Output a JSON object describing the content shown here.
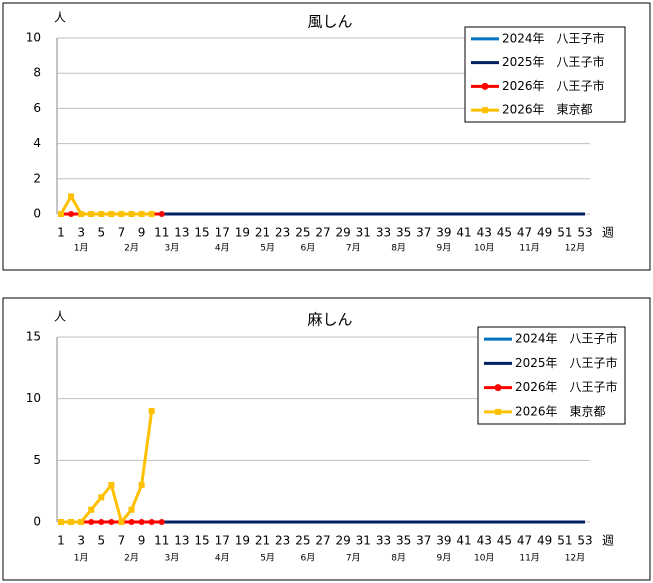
{
  "chart_data": [
    {
      "type": "line",
      "title": "風しん",
      "y_unit": "人",
      "x_unit": "週",
      "x": [
        1,
        2,
        3,
        4,
        5,
        6,
        7,
        8,
        9,
        10,
        11,
        12,
        13,
        14,
        15,
        16,
        17,
        18,
        19,
        20,
        21,
        22,
        23,
        24,
        25,
        26,
        27,
        28,
        29,
        30,
        31,
        32,
        33,
        34,
        35,
        36,
        37,
        38,
        39,
        40,
        41,
        42,
        43,
        44,
        45,
        46,
        47,
        48,
        49,
        50,
        51,
        52,
        53
      ],
      "xlim": [
        1,
        53
      ],
      "xticks": [
        1,
        3,
        5,
        7,
        9,
        11,
        13,
        15,
        17,
        19,
        21,
        23,
        25,
        27,
        29,
        31,
        33,
        35,
        37,
        39,
        41,
        43,
        45,
        47,
        49,
        51,
        53
      ],
      "month_labels": [
        {
          "value": 3,
          "label": "1月"
        },
        {
          "value": 8,
          "label": "2月"
        },
        {
          "value": 12,
          "label": "3月"
        },
        {
          "value": 17,
          "label": "4月"
        },
        {
          "value": 21.5,
          "label": "5月"
        },
        {
          "value": 25.5,
          "label": "6月"
        },
        {
          "value": 30,
          "label": "7月"
        },
        {
          "value": 34.5,
          "label": "8月"
        },
        {
          "value": 39,
          "label": "9月"
        },
        {
          "value": 43,
          "label": "10月"
        },
        {
          "value": 47.5,
          "label": "11月"
        },
        {
          "value": 52,
          "label": "12月"
        }
      ],
      "ylim": [
        0,
        10
      ],
      "yticks": [
        0,
        2,
        4,
        6,
        8,
        10
      ],
      "grid": true,
      "legend": "top-right",
      "series": [
        {
          "name": "2024年　八王子市",
          "color": "#0070c0",
          "values": [
            0,
            0,
            0,
            0,
            0,
            0,
            0,
            0,
            0,
            0,
            0,
            0,
            0,
            0,
            0,
            0,
            0,
            0,
            0,
            0,
            0,
            0,
            0,
            0,
            0,
            0,
            0,
            0,
            0,
            0,
            0,
            0,
            0,
            0,
            0,
            0,
            0,
            0,
            0,
            0,
            0,
            0,
            0,
            0,
            0,
            0,
            0,
            0,
            0,
            0,
            0,
            0,
            0
          ]
        },
        {
          "name": "2025年　八王子市",
          "color": "#002060",
          "values": [
            0,
            0,
            0,
            0,
            0,
            0,
            0,
            0,
            0,
            0,
            0,
            0,
            0,
            0,
            0,
            0,
            0,
            0,
            0,
            0,
            0,
            0,
            0,
            0,
            0,
            0,
            0,
            0,
            0,
            0,
            0,
            0,
            0,
            0,
            0,
            0,
            0,
            0,
            0,
            0,
            0,
            0,
            0,
            0,
            0,
            0,
            0,
            0,
            0,
            0,
            0,
            0,
            0
          ]
        },
        {
          "name": "2026年　八王子市",
          "color": "#ff0000",
          "marker": "circle",
          "values": [
            0,
            0,
            0,
            0,
            0,
            0,
            0,
            0,
            0,
            0,
            0,
            null,
            null,
            null,
            null,
            null,
            null,
            null,
            null,
            null,
            null,
            null,
            null,
            null,
            null,
            null,
            null,
            null,
            null,
            null,
            null,
            null,
            null,
            null,
            null,
            null,
            null,
            null,
            null,
            null,
            null,
            null,
            null,
            null,
            null,
            null,
            null,
            null,
            null,
            null,
            null,
            null,
            null
          ]
        },
        {
          "name": "2026年　東京都",
          "color": "#ffc000",
          "marker": "square",
          "values": [
            0,
            1,
            0,
            0,
            0,
            0,
            0,
            0,
            0,
            0,
            null,
            null,
            null,
            null,
            null,
            null,
            null,
            null,
            null,
            null,
            null,
            null,
            null,
            null,
            null,
            null,
            null,
            null,
            null,
            null,
            null,
            null,
            null,
            null,
            null,
            null,
            null,
            null,
            null,
            null,
            null,
            null,
            null,
            null,
            null,
            null,
            null,
            null,
            null,
            null,
            null,
            null,
            null
          ]
        }
      ]
    },
    {
      "type": "line",
      "title": "麻しん",
      "y_unit": "人",
      "x_unit": "週",
      "x": [
        1,
        2,
        3,
        4,
        5,
        6,
        7,
        8,
        9,
        10,
        11,
        12,
        13,
        14,
        15,
        16,
        17,
        18,
        19,
        20,
        21,
        22,
        23,
        24,
        25,
        26,
        27,
        28,
        29,
        30,
        31,
        32,
        33,
        34,
        35,
        36,
        37,
        38,
        39,
        40,
        41,
        42,
        43,
        44,
        45,
        46,
        47,
        48,
        49,
        50,
        51,
        52,
        53
      ],
      "xlim": [
        1,
        53
      ],
      "xticks": [
        1,
        3,
        5,
        7,
        9,
        11,
        13,
        15,
        17,
        19,
        21,
        23,
        25,
        27,
        29,
        31,
        33,
        35,
        37,
        39,
        41,
        43,
        45,
        47,
        49,
        51,
        53
      ],
      "month_labels": [
        {
          "value": 3,
          "label": "1月"
        },
        {
          "value": 8,
          "label": "2月"
        },
        {
          "value": 12,
          "label": "3月"
        },
        {
          "value": 17,
          "label": "4月"
        },
        {
          "value": 21.5,
          "label": "5月"
        },
        {
          "value": 25.5,
          "label": "6月"
        },
        {
          "value": 30,
          "label": "7月"
        },
        {
          "value": 34.5,
          "label": "8月"
        },
        {
          "value": 39,
          "label": "9月"
        },
        {
          "value": 43,
          "label": "10月"
        },
        {
          "value": 47.5,
          "label": "11月"
        },
        {
          "value": 52,
          "label": "12月"
        }
      ],
      "ylim": [
        0,
        15
      ],
      "yticks": [
        0,
        5,
        10,
        15
      ],
      "grid": true,
      "legend": "top-right",
      "series": [
        {
          "name": "2024年　八王子市",
          "color": "#0070c0",
          "values": [
            0,
            0,
            0,
            0,
            0,
            0,
            0,
            0,
            0,
            0,
            0,
            0,
            0,
            0,
            0,
            0,
            0,
            0,
            0,
            0,
            0,
            0,
            0,
            0,
            0,
            0,
            0,
            0,
            0,
            0,
            0,
            0,
            0,
            0,
            0,
            0,
            0,
            0,
            0,
            0,
            0,
            0,
            0,
            0,
            0,
            0,
            0,
            0,
            0,
            0,
            0,
            0,
            0
          ]
        },
        {
          "name": "2025年　八王子市",
          "color": "#002060",
          "values": [
            0,
            0,
            0,
            0,
            0,
            0,
            0,
            0,
            0,
            0,
            0,
            0,
            0,
            0,
            0,
            0,
            0,
            0,
            0,
            0,
            0,
            0,
            0,
            0,
            0,
            0,
            0,
            0,
            0,
            0,
            0,
            0,
            0,
            0,
            0,
            0,
            0,
            0,
            0,
            0,
            0,
            0,
            0,
            0,
            0,
            0,
            0,
            0,
            0,
            0,
            0,
            0,
            0
          ]
        },
        {
          "name": "2026年　八王子市",
          "color": "#ff0000",
          "marker": "circle",
          "values": [
            0,
            0,
            0,
            0,
            0,
            0,
            0,
            0,
            0,
            0,
            0,
            null,
            null,
            null,
            null,
            null,
            null,
            null,
            null,
            null,
            null,
            null,
            null,
            null,
            null,
            null,
            null,
            null,
            null,
            null,
            null,
            null,
            null,
            null,
            null,
            null,
            null,
            null,
            null,
            null,
            null,
            null,
            null,
            null,
            null,
            null,
            null,
            null,
            null,
            null,
            null,
            null,
            null
          ]
        },
        {
          "name": "2026年　東京都",
          "color": "#ffc000",
          "marker": "square",
          "values": [
            0,
            0,
            0,
            1,
            2,
            3,
            0,
            1,
            3,
            9,
            null,
            null,
            null,
            null,
            null,
            null,
            null,
            null,
            null,
            null,
            null,
            null,
            null,
            null,
            null,
            null,
            null,
            null,
            null,
            null,
            null,
            null,
            null,
            null,
            null,
            null,
            null,
            null,
            null,
            null,
            null,
            null,
            null,
            null,
            null,
            null,
            null,
            null,
            null,
            null,
            null,
            null,
            null
          ]
        }
      ]
    }
  ]
}
